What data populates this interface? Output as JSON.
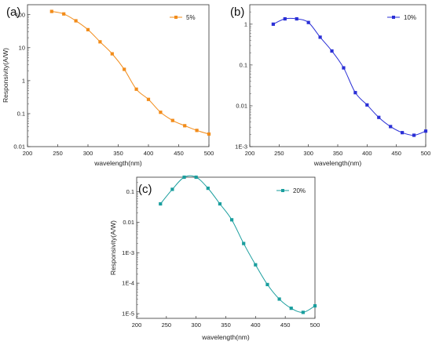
{
  "chart_data": [
    {
      "type": "line",
      "panel_label": "(a)",
      "xlabel": "wavelength(nm)",
      "ylabel": "Responsivity(A/W)",
      "xlim": [
        200,
        500
      ],
      "ylim": [
        0.01,
        200
      ],
      "yscale": "log",
      "xticks": [
        200,
        250,
        300,
        350,
        400,
        450,
        500
      ],
      "xtick_labels": [
        "200",
        "250",
        "300",
        "350",
        "400",
        "450",
        "500"
      ],
      "yticks": [
        0.01,
        0.1,
        1,
        10,
        100
      ],
      "ytick_labels": [
        "0.01",
        "0.1",
        "1",
        "10",
        "100"
      ],
      "grid": false,
      "legend_position": "top-right",
      "series": [
        {
          "name": "5%",
          "color": "#f28c1a",
          "marker": "square",
          "x": [
            240,
            260,
            280,
            300,
            320,
            340,
            360,
            380,
            400,
            420,
            440,
            460,
            480,
            500
          ],
          "y": [
            125,
            105,
            65,
            35,
            15,
            6.5,
            2.2,
            0.55,
            0.27,
            0.11,
            0.062,
            0.043,
            0.031,
            0.024
          ]
        }
      ]
    },
    {
      "type": "line",
      "panel_label": "(b)",
      "xlabel": "wavelength(nm)",
      "ylabel": "",
      "xlim": [
        200,
        500
      ],
      "ylim": [
        0.001,
        3
      ],
      "yscale": "log",
      "xticks": [
        200,
        250,
        300,
        350,
        400,
        450,
        500
      ],
      "xtick_labels": [
        "200",
        "250",
        "300",
        "350",
        "400",
        "450",
        "500"
      ],
      "yticks": [
        0.001,
        0.01,
        0.1,
        1
      ],
      "ytick_labels": [
        "1E-3",
        "0.01",
        "0.1",
        "1"
      ],
      "grid": false,
      "legend_position": "top-right",
      "series": [
        {
          "name": "10%",
          "color": "#2a2fd6",
          "marker": "square",
          "x": [
            240,
            260,
            280,
            300,
            320,
            340,
            360,
            380,
            400,
            420,
            440,
            460,
            480,
            500
          ],
          "y": [
            1.0,
            1.35,
            1.35,
            1.1,
            0.48,
            0.22,
            0.085,
            0.021,
            0.0105,
            0.0052,
            0.0031,
            0.0022,
            0.0019,
            0.0024
          ]
        }
      ]
    },
    {
      "type": "line",
      "panel_label": "(c)",
      "xlabel": "wavelength(nm)",
      "ylabel": "Responsivity(A/W)",
      "xlim": [
        200,
        500
      ],
      "ylim": [
        7e-06,
        0.3
      ],
      "yscale": "log",
      "xticks": [
        200,
        250,
        300,
        350,
        400,
        450,
        500
      ],
      "xtick_labels": [
        "200",
        "250",
        "300",
        "350",
        "400",
        "450",
        "500"
      ],
      "yticks": [
        1e-05,
        0.0001,
        0.001,
        0.01,
        0.1
      ],
      "ytick_labels": [
        "1E-5",
        "1E-4",
        "1E-3",
        "0.01",
        "0.1"
      ],
      "grid": false,
      "legend_position": "top-right",
      "series": [
        {
          "name": "20%",
          "color": "#1a9e9e",
          "marker": "square",
          "x": [
            240,
            260,
            280,
            300,
            320,
            340,
            360,
            380,
            400,
            420,
            440,
            460,
            480,
            500
          ],
          "y": [
            0.04,
            0.12,
            0.3,
            0.3,
            0.13,
            0.04,
            0.012,
            0.002,
            0.0004,
            9e-05,
            3e-05,
            1.5e-05,
            1.1e-05,
            1.8e-05
          ]
        }
      ]
    }
  ]
}
